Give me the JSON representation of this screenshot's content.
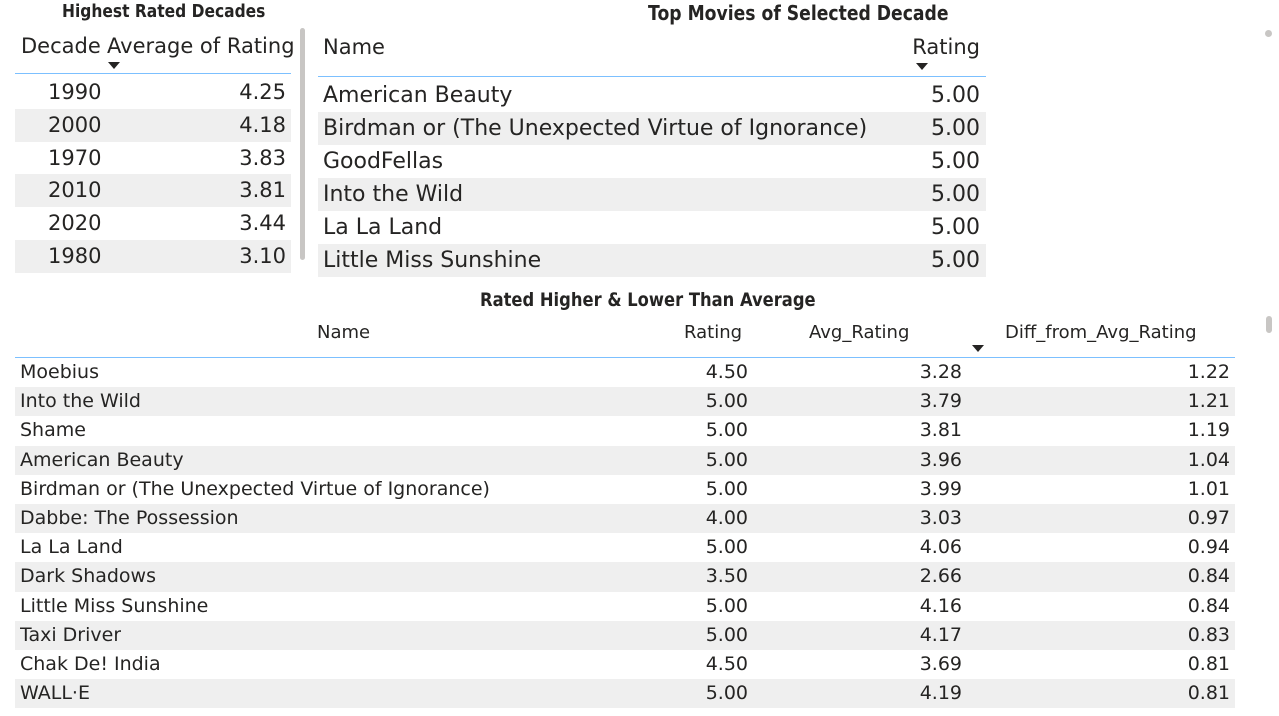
{
  "decades": {
    "title": "Highest Rated Decades",
    "col_decade": "Decade",
    "col_avg": "Average of Rating",
    "rows": [
      {
        "decade": "1990",
        "avg": "4.25"
      },
      {
        "decade": "2000",
        "avg": "4.18"
      },
      {
        "decade": "1970",
        "avg": "3.83"
      },
      {
        "decade": "2010",
        "avg": "3.81"
      },
      {
        "decade": "2020",
        "avg": "3.44"
      },
      {
        "decade": "1980",
        "avg": "3.10"
      }
    ]
  },
  "top_movies": {
    "title": "Top Movies of Selected Decade",
    "col_name": "Name",
    "col_rating": "Rating",
    "rows": [
      {
        "name": "American Beauty",
        "rating": "5.00"
      },
      {
        "name": "Birdman or (The Unexpected Virtue of Ignorance)",
        "rating": "5.00"
      },
      {
        "name": "GoodFellas",
        "rating": "5.00"
      },
      {
        "name": "Into the Wild",
        "rating": "5.00"
      },
      {
        "name": "La La Land",
        "rating": "5.00"
      },
      {
        "name": "Little Miss Sunshine",
        "rating": "5.00"
      }
    ]
  },
  "rated": {
    "title": "Rated Higher & Lower Than Average",
    "col_name": "Name",
    "col_rating": "Rating",
    "col_avg": "Avg_Rating",
    "col_diff": "Diff_from_Avg_Rating",
    "rows": [
      {
        "name": "Moebius",
        "rating": "4.50",
        "avg": "3.28",
        "diff": "1.22"
      },
      {
        "name": "Into the Wild",
        "rating": "5.00",
        "avg": "3.79",
        "diff": "1.21"
      },
      {
        "name": "Shame",
        "rating": "5.00",
        "avg": "3.81",
        "diff": "1.19"
      },
      {
        "name": "American Beauty",
        "rating": "5.00",
        "avg": "3.96",
        "diff": "1.04"
      },
      {
        "name": "Birdman or (The Unexpected Virtue of Ignorance)",
        "rating": "5.00",
        "avg": "3.99",
        "diff": "1.01"
      },
      {
        "name": "Dabbe: The Possession",
        "rating": "4.00",
        "avg": "3.03",
        "diff": "0.97"
      },
      {
        "name": "La La Land",
        "rating": "5.00",
        "avg": "4.06",
        "diff": "0.94"
      },
      {
        "name": "Dark Shadows",
        "rating": "3.50",
        "avg": "2.66",
        "diff": "0.84"
      },
      {
        "name": "Little Miss Sunshine",
        "rating": "5.00",
        "avg": "4.16",
        "diff": "0.84"
      },
      {
        "name": "Taxi Driver",
        "rating": "5.00",
        "avg": "4.17",
        "diff": "0.83"
      },
      {
        "name": "Chak De! India",
        "rating": "4.50",
        "avg": "3.69",
        "diff": "0.81"
      },
      {
        "name": "WALL·E",
        "rating": "5.00",
        "avg": "4.19",
        "diff": "0.81"
      }
    ]
  },
  "colors": {
    "stripe": "#efefef",
    "accent": "#118dff",
    "text": "#252423"
  }
}
